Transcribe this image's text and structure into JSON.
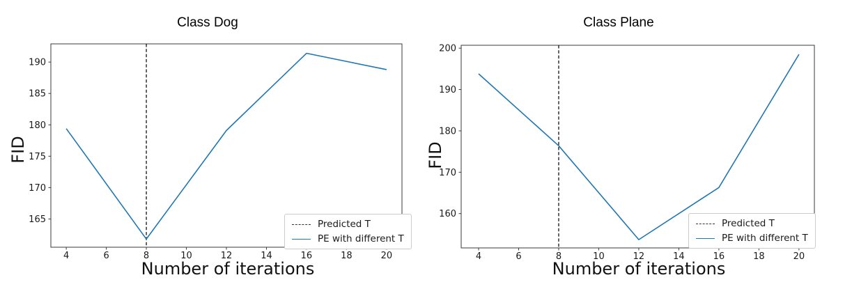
{
  "figure": {
    "background": "#ffffff",
    "accent_line_color": "#1f77b4",
    "vline_color": "#000000"
  },
  "chart_data": [
    {
      "type": "line",
      "title": "Class Dog",
      "xlabel": "Number of iterations",
      "ylabel": "FID",
      "x": [
        4,
        8,
        12,
        16,
        20
      ],
      "series": [
        {
          "name": "PE with different T",
          "values": [
            179.4,
            161.8,
            179.1,
            191.4,
            188.8
          ],
          "color": "#1f77b4",
          "line_style": "solid"
        }
      ],
      "vline": {
        "x": 8,
        "name": "Predicted T",
        "color": "#111111",
        "line_style": "dashed"
      },
      "xticks": [
        4,
        6,
        8,
        10,
        12,
        14,
        16,
        18,
        20
      ],
      "yticks": [
        165,
        170,
        175,
        180,
        185,
        190
      ],
      "xlim": [
        3.23,
        20.77
      ],
      "ylim": [
        160.5,
        192.9
      ],
      "grid": false,
      "legend": {
        "position": "lower right",
        "entries": [
          "Predicted T",
          "PE with different T"
        ]
      }
    },
    {
      "type": "line",
      "title": "Class Plane",
      "xlabel": "Number of iterations",
      "ylabel": "FID",
      "x": [
        4,
        8,
        12,
        16,
        20
      ],
      "series": [
        {
          "name": "PE with different T",
          "values": [
            193.8,
            176.4,
            153.7,
            166.3,
            198.5
          ],
          "color": "#1f77b4",
          "line_style": "solid"
        }
      ],
      "vline": {
        "x": 8,
        "name": "Predicted T",
        "color": "#111111",
        "line_style": "dashed"
      },
      "xticks": [
        4,
        6,
        8,
        10,
        12,
        14,
        16,
        18,
        20
      ],
      "yticks": [
        160,
        170,
        180,
        190,
        200
      ],
      "xlim": [
        3.13,
        20.77
      ],
      "ylim": [
        151.7,
        200.7
      ],
      "grid": false,
      "legend": {
        "position": "lower right",
        "entries": [
          "Predicted T",
          "PE with different T"
        ]
      }
    }
  ]
}
